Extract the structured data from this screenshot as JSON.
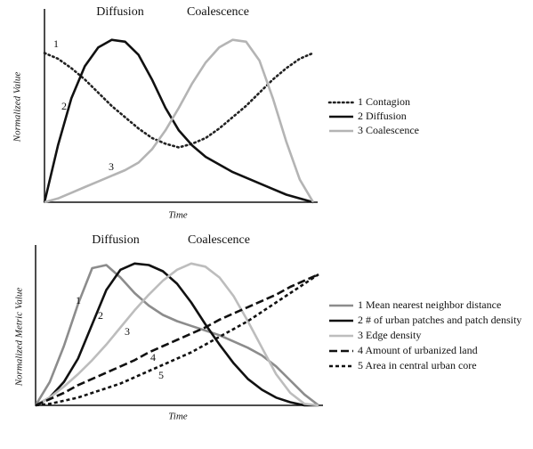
{
  "chart_data": [
    {
      "type": "line",
      "annotations": [
        "Diffusion",
        "Coalescence"
      ],
      "xlabel": "Time",
      "ylabel": "Normalized Value",
      "xlim": [
        0,
        10
      ],
      "ylim": [
        0,
        100
      ],
      "x": [
        0,
        0.5,
        1,
        1.5,
        2,
        2.5,
        3,
        3.5,
        4,
        4.5,
        5,
        5.5,
        6,
        6.5,
        7,
        7.5,
        8,
        8.5,
        9,
        9.5,
        10
      ],
      "series": [
        {
          "name": "1 Contagion",
          "label": "1",
          "color": "#222222",
          "dash": "dotted",
          "values": [
            79,
            76,
            71,
            65,
            58,
            51,
            45,
            39,
            34,
            31,
            29,
            31,
            34,
            39,
            45,
            51,
            58,
            65,
            71,
            76,
            79
          ]
        },
        {
          "name": "2 Diffusion",
          "label": "2",
          "color": "#111111",
          "dash": "solid",
          "values": [
            0,
            30,
            55,
            72,
            82,
            86,
            85,
            78,
            65,
            50,
            38,
            30,
            24,
            20,
            16,
            13,
            10,
            7,
            4,
            2,
            0
          ]
        },
        {
          "name": "3 Coalescence",
          "label": "3",
          "color": "#b4b4b4",
          "dash": "solid",
          "values": [
            0,
            2,
            5,
            8,
            11,
            14,
            17,
            21,
            28,
            38,
            50,
            63,
            74,
            82,
            86,
            85,
            75,
            55,
            32,
            12,
            0
          ]
        }
      ]
    },
    {
      "type": "line",
      "annotations": [
        "Diffusion",
        "Coalescence"
      ],
      "xlabel": "Time",
      "ylabel": "Normalized Metric Value",
      "xlim": [
        0,
        10
      ],
      "ylim": [
        0,
        100
      ],
      "x": [
        0,
        0.5,
        1,
        1.5,
        2,
        2.5,
        3,
        3.5,
        4,
        4.5,
        5,
        5.5,
        6,
        6.5,
        7,
        7.5,
        8,
        8.5,
        9,
        9.5,
        10
      ],
      "series": [
        {
          "name": "1 Mean nearest neighbor distance",
          "label": "1",
          "color": "#8c8c8c",
          "dash": "solid",
          "values": [
            0,
            15,
            38,
            65,
            88,
            90,
            82,
            72,
            64,
            58,
            54,
            51,
            48,
            45,
            41,
            37,
            32,
            25,
            16,
            7,
            0
          ]
        },
        {
          "name": "2 # of urban patches and patch density",
          "label": "2",
          "color": "#111111",
          "dash": "solid",
          "values": [
            0,
            5,
            15,
            30,
            52,
            74,
            87,
            91,
            90,
            86,
            78,
            66,
            52,
            39,
            27,
            17,
            10,
            5,
            2,
            0,
            0
          ]
        },
        {
          "name": "3 Edge density",
          "label": "3",
          "color": "#bdbdbd",
          "dash": "solid",
          "values": [
            0,
            5,
            12,
            20,
            29,
            39,
            50,
            61,
            71,
            80,
            87,
            91,
            89,
            82,
            70,
            54,
            37,
            20,
            8,
            1,
            0
          ]
        },
        {
          "name": "4 Amount of urbanized land",
          "label": "4",
          "color": "#111111",
          "dash": "dashed",
          "values": [
            0,
            4,
            8,
            13,
            17,
            21,
            25,
            29,
            34,
            38,
            42,
            46,
            50,
            55,
            59,
            63,
            67,
            71,
            76,
            80,
            84
          ]
        },
        {
          "name": "5 Area in central urban core",
          "label": "5",
          "color": "#111111",
          "dash": "short-dashed",
          "values": [
            0,
            1,
            3,
            5,
            8,
            11,
            14,
            18,
            22,
            26,
            30,
            34,
            39,
            44,
            49,
            54,
            60,
            66,
            72,
            78,
            84
          ]
        }
      ]
    }
  ]
}
